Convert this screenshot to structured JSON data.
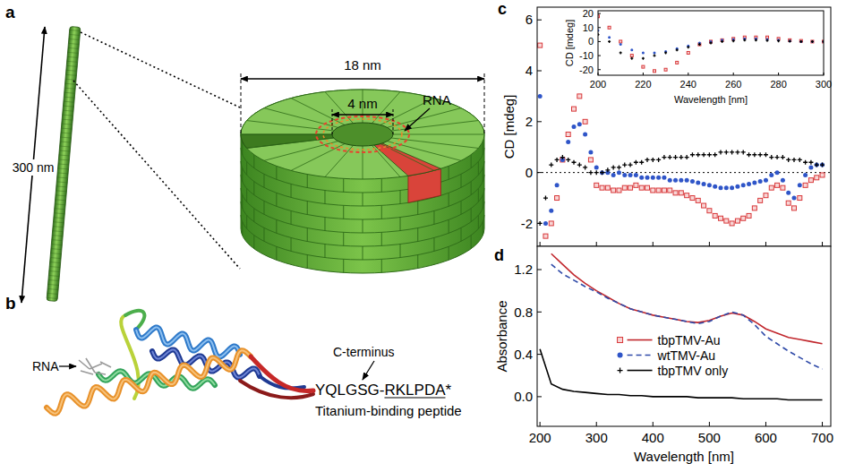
{
  "diagram": {
    "panel_a": {
      "label": "a",
      "rod_length": "300 nm",
      "disk_diameter": "18 nm",
      "channel_diameter": "4 nm",
      "rna": "RNA"
    },
    "panel_b": {
      "label": "b",
      "rna": "RNA",
      "c_terminus": "C-terminus",
      "peptide": [
        "YQLGSG-",
        "RKLPDA",
        "*"
      ],
      "peptide_caption": "Titanium-binding peptide"
    }
  },
  "chart_data": [
    {
      "panel": "c",
      "type": "scatter",
      "ylabel": "CD [mdeg]",
      "x": [
        200,
        210,
        220,
        230,
        240,
        250,
        260,
        270,
        280,
        290,
        300,
        310,
        320,
        330,
        340,
        350,
        360,
        370,
        380,
        390,
        400,
        410,
        420,
        430,
        440,
        450,
        460,
        470,
        480,
        490,
        500,
        510,
        520,
        530,
        540,
        550,
        560,
        570,
        580,
        590,
        600,
        610,
        620,
        630,
        640,
        650,
        660,
        670,
        680,
        690,
        700
      ],
      "xlim": [
        195,
        715
      ],
      "xticks": [
        200,
        300,
        400,
        500,
        600,
        700
      ],
      "ylim": [
        -2.9,
        6.5
      ],
      "yticks": [
        -2,
        0,
        2,
        4,
        6
      ],
      "tick_labels": "y",
      "series": [
        {
          "color": "#d8383a",
          "marker": "square",
          "values": [
            5,
            -2.5,
            -2,
            -1,
            0.5,
            1.5,
            2.5,
            3,
            2,
            0.5,
            -0.5,
            -0.6,
            -0.6,
            -0.7,
            -0.7,
            -0.6,
            -0.6,
            -0.5,
            -0.6,
            -0.6,
            -0.7,
            -0.7,
            -0.7,
            -0.7,
            -0.8,
            -0.8,
            -0.9,
            -1,
            -1.1,
            -1.3,
            -1.5,
            -1.7,
            -1.8,
            -1.9,
            -2,
            -1.9,
            -1.8,
            -1.7,
            -1.4,
            -1.1,
            -0.9,
            -0.6,
            -0.5,
            -0.6,
            -1.2,
            -1.4,
            -1,
            -0.5,
            -0.3,
            -0.2,
            -0.1
          ]
        },
        {
          "color": "#2f55c8",
          "marker": "circle",
          "values": [
            3,
            -2,
            -1.5,
            -0.5,
            0.5,
            1.2,
            1.8,
            1.9,
            1.5,
            0.8,
            0.2,
            0,
            0,
            -0.1,
            0,
            -0.1,
            -0.1,
            -0.1,
            -0.2,
            -0.2,
            -0.2,
            -0.2,
            -0.2,
            -0.3,
            -0.3,
            -0.3,
            -0.3,
            -0.35,
            -0.4,
            -0.45,
            -0.5,
            -0.55,
            -0.6,
            -0.6,
            -0.6,
            -0.55,
            -0.5,
            -0.45,
            -0.4,
            -0.35,
            -0.3,
            -0.1,
            0,
            -0.3,
            -0.8,
            -1,
            -0.5,
            -0.1,
            0.2,
            0.3,
            0.3
          ]
        },
        {
          "color": "#000000",
          "marker": "plus",
          "values": [
            -2,
            -1,
            0.3,
            0.5,
            0.6,
            0.5,
            0.4,
            0.3,
            0.2,
            0,
            0,
            0,
            0.1,
            0.2,
            0.2,
            0.3,
            0.3,
            0.4,
            0.4,
            0.5,
            0.5,
            0.5,
            0.6,
            0.6,
            0.6,
            0.6,
            0.6,
            0.7,
            0.7,
            0.7,
            0.7,
            0.7,
            0.8,
            0.8,
            0.8,
            0.8,
            0.8,
            0.7,
            0.7,
            0.7,
            0.7,
            0.6,
            0.6,
            0.6,
            0.5,
            0.5,
            0.5,
            0.4,
            0.4,
            0.3,
            0.3
          ]
        }
      ],
      "inset": {
        "type": "scatter",
        "xlabel": "Wavelength [nm]",
        "ylabel": "CD [mdeg]",
        "x": [
          200,
          205,
          210,
          215,
          220,
          225,
          230,
          235,
          240,
          245,
          250,
          255,
          260,
          265,
          270,
          275,
          280,
          285,
          290,
          295,
          300
        ],
        "xlim": [
          200,
          300
        ],
        "xticks": [
          200,
          220,
          240,
          260,
          280,
          300
        ],
        "ylim": [
          -24,
          22
        ],
        "yticks": [
          -20,
          -10,
          0,
          10,
          20
        ],
        "series": [
          {
            "color": "#d8383a",
            "marker": "square",
            "values": [
              18,
              10,
              0,
              -10,
              -18,
              -21,
              -20,
              -15,
              -8,
              -2,
              0,
              1,
              2,
              3,
              3,
              3,
              2,
              1,
              0.5,
              0,
              0
            ]
          },
          {
            "color": "#2f55c8",
            "marker": "circle",
            "values": [
              8,
              3,
              -2,
              -6,
              -8,
              -8,
              -7,
              -5,
              -3,
              -1,
              0,
              1,
              1.5,
              2,
              2,
              1.5,
              1,
              0.5,
              0,
              0,
              0
            ]
          },
          {
            "color": "#000000",
            "marker": "plus",
            "values": [
              5,
              0,
              -8,
              -12,
              -12,
              -10,
              -8,
              -6,
              -4,
              -2,
              -1,
              0,
              0.5,
              1,
              1,
              0.8,
              0.5,
              0.2,
              0,
              0,
              0
            ]
          }
        ]
      }
    },
    {
      "panel": "d",
      "type": "line",
      "xlabel": "Wavelength [nm]",
      "ylabel": "Absorbance",
      "x": [
        200,
        220,
        240,
        260,
        280,
        300,
        320,
        340,
        360,
        380,
        400,
        420,
        440,
        460,
        480,
        500,
        520,
        540,
        560,
        580,
        600,
        620,
        640,
        660,
        680,
        700
      ],
      "xlim": [
        195,
        715
      ],
      "xticks": [
        200,
        300,
        400,
        500,
        600,
        700
      ],
      "ylim": [
        -0.28,
        1.42
      ],
      "yticks": [
        {
          "value": 0,
          "label": "0.0"
        },
        0.4,
        0.8,
        1.2
      ],
      "legend": "center",
      "series": [
        {
          "name": "tbpTMV-Au",
          "color": "#c1272d",
          "line_style": "solid",
          "values": [
            null,
            1.35,
            1.25,
            1.15,
            1.07,
            1.0,
            0.94,
            0.88,
            0.83,
            0.8,
            0.77,
            0.75,
            0.73,
            0.71,
            0.7,
            0.72,
            0.76,
            0.79,
            0.77,
            0.71,
            0.64,
            0.6,
            0.56,
            0.54,
            0.52,
            0.5
          ]
        },
        {
          "name": "wtTMV-Au",
          "color": "#2f4aa8",
          "line_style": "dashed",
          "values": [
            null,
            1.25,
            1.16,
            1.1,
            1.04,
            0.99,
            0.93,
            0.88,
            0.83,
            0.8,
            0.77,
            0.75,
            0.73,
            0.71,
            0.69,
            0.71,
            0.76,
            0.8,
            0.77,
            0.68,
            0.57,
            0.5,
            0.43,
            0.37,
            0.31,
            0.26
          ]
        },
        {
          "name": "tbpTMV only",
          "color": "#000000",
          "line_style": "solid",
          "values": [
            0.45,
            0.12,
            0.07,
            0.05,
            0.04,
            0.03,
            0.02,
            0.02,
            0.01,
            0.01,
            0,
            0,
            0,
            0,
            -0.01,
            -0.01,
            -0.01,
            -0.01,
            -0.02,
            -0.02,
            -0.02,
            -0.02,
            -0.03,
            -0.03,
            -0.03,
            -0.03
          ]
        }
      ]
    }
  ]
}
